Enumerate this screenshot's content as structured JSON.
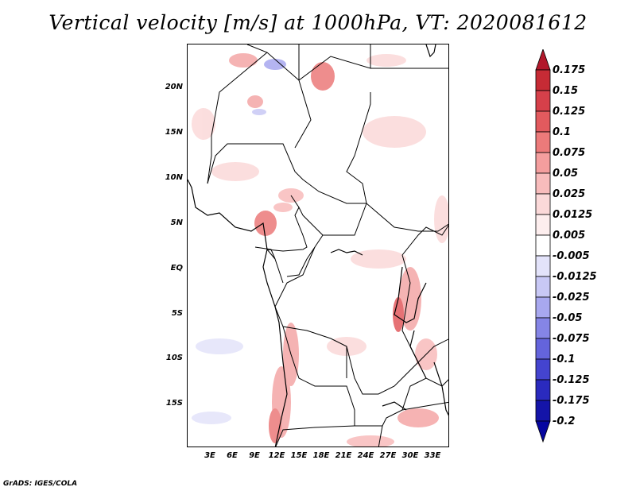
{
  "title": "Vertical velocity [m/s] at 1000hPa, VT: 2020081612",
  "footer": "GrADS: IGES/COLA",
  "map": {
    "lat_labels": [
      "20N",
      "15N",
      "10N",
      "5N",
      "EQ",
      "5S",
      "10S",
      "15S"
    ],
    "lon_labels": [
      "3E",
      "6E",
      "9E",
      "12E",
      "15E",
      "18E",
      "21E",
      "24E",
      "27E",
      "30E",
      "33E"
    ]
  },
  "colorbar": {
    "labels": [
      "0.175",
      "0.15",
      "0.125",
      "0.1",
      "0.075",
      "0.05",
      "0.025",
      "0.0125",
      "0.005",
      "-0.005",
      "-0.0125",
      "-0.025",
      "-0.05",
      "-0.075",
      "-0.1",
      "-0.125",
      "-0.175",
      "-0.2"
    ],
    "colors": [
      "#b2182b",
      "#c62b35",
      "#d6404a",
      "#e25a5e",
      "#ec7a7a",
      "#f49e9e",
      "#f8bcbc",
      "#fbd9d9",
      "#fdeeee",
      "#ffffff",
      "#e3e3fa",
      "#c8c8f5",
      "#a8a8ef",
      "#8585e6",
      "#6464dc",
      "#4444cf",
      "#2a2abe",
      "#1414a8",
      "#0606a0"
    ]
  }
}
